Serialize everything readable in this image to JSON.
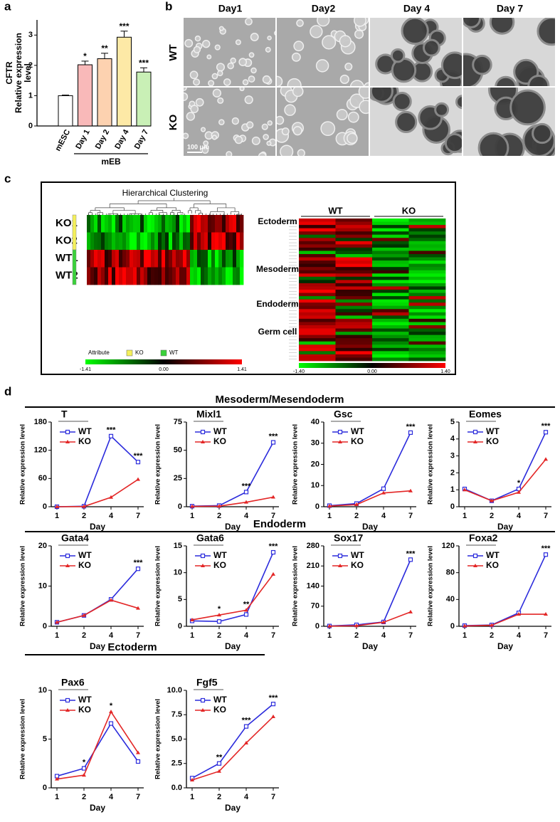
{
  "panel_labels": [
    "a",
    "b",
    "c",
    "d"
  ],
  "micrographs": {
    "columns": [
      "Day1",
      "Day2",
      "Day 4",
      "Day 7"
    ],
    "rows": [
      "WT",
      "KO"
    ],
    "scale_bar": "100 μm"
  },
  "heatmap_clustering": {
    "title": "Hierarchical Clustering",
    "rows": [
      "KO1",
      "KO2",
      "WT1",
      "WT2"
    ],
    "attribute_label": "Attribute",
    "legend": [
      "KO",
      "WT"
    ],
    "scale_ticks": [
      -1.41,
      {
        "value": 0,
        "label": "0.00"
      },
      1.41
    ]
  },
  "heatmap_lineage": {
    "columns": [
      "WT",
      "KO"
    ],
    "groups": [
      "Ectoderm",
      "Mesoderm",
      "Endoderm",
      "Germ cell"
    ],
    "scale_ticks": [
      {
        "value": -1.4,
        "label": "-1.40"
      },
      {
        "value": 0,
        "label": "0.00"
      },
      {
        "value": 1.4,
        "label": "1.40"
      }
    ]
  },
  "section_titles": [
    "Mesoderm/Mesendoderm",
    "Endoderm",
    "Ectoderm"
  ],
  "chart_data": [
    {
      "type": "bar",
      "ylabel": [
        "CFTR",
        "Relative expression",
        "level"
      ],
      "categories": [
        "mESC",
        "Day 1",
        "Day 2",
        "Day 4",
        "Day 7"
      ],
      "group_label": "mEB",
      "values": [
        1,
        2.02,
        2.22,
        2.93,
        1.78
      ],
      "errors": [
        0.02,
        0.12,
        0.18,
        0.2,
        0.14
      ],
      "annotations": [
        null,
        "*",
        "**",
        "***",
        "***"
      ],
      "colors": [
        "#ffffff",
        "#f9b9b9",
        "#fdd2b0",
        "#fde9a6",
        "#c9f0b6"
      ],
      "ylim": [
        0,
        3.5
      ],
      "yticks": [
        0,
        1,
        2,
        3
      ]
    },
    {
      "type": "line",
      "title": "T",
      "xlabel": "Day",
      "ylabel": "Relative expression level",
      "categories": [
        "1",
        "2",
        "4",
        "7"
      ],
      "series": [
        {
          "name": "WT",
          "color": "#2b2bdc",
          "values": [
            0,
            1,
            150,
            95
          ]
        },
        {
          "name": "KO",
          "color": "#e32626",
          "values": [
            0,
            0.5,
            20,
            58
          ]
        }
      ],
      "annotations": [
        null,
        null,
        "***",
        "***"
      ],
      "ylim": [
        0,
        180
      ],
      "yticks": [
        0,
        60,
        120,
        180
      ]
    },
    {
      "type": "line",
      "title": "Mixl1",
      "xlabel": "Day",
      "ylabel": "Relative expression level",
      "categories": [
        "1",
        "2",
        "4",
        "7"
      ],
      "series": [
        {
          "name": "WT",
          "color": "#2b2bdc",
          "values": [
            0.5,
            1,
            13,
            57
          ]
        },
        {
          "name": "KO",
          "color": "#e32626",
          "values": [
            0.3,
            0.5,
            4,
            8.5
          ]
        }
      ],
      "annotations": [
        null,
        null,
        "***",
        "***"
      ],
      "ylim": [
        0,
        75
      ],
      "yticks": [
        0,
        25,
        50,
        75
      ]
    },
    {
      "type": "line",
      "title": "Gsc",
      "xlabel": "Day",
      "ylabel": "Relative expression level",
      "categories": [
        "1",
        "2",
        "4",
        "7"
      ],
      "series": [
        {
          "name": "WT",
          "color": "#2b2bdc",
          "values": [
            0.5,
            1.5,
            8.5,
            35
          ]
        },
        {
          "name": "KO",
          "color": "#e32626",
          "values": [
            0.3,
            1,
            6.5,
            7.5
          ]
        }
      ],
      "annotations": [
        null,
        null,
        null,
        "***"
      ],
      "ylim": [
        0,
        40
      ],
      "yticks": [
        0,
        10,
        20,
        30,
        40
      ]
    },
    {
      "type": "line",
      "title": "Eomes",
      "xlabel": "Day",
      "ylabel": "Relative expression level",
      "categories": [
        "1",
        "2",
        "4",
        "7"
      ],
      "series": [
        {
          "name": "WT",
          "color": "#2b2bdc",
          "values": [
            1.05,
            0.35,
            1.05,
            4.4
          ]
        },
        {
          "name": "KO",
          "color": "#e32626",
          "values": [
            1,
            0.35,
            0.85,
            2.8
          ]
        }
      ],
      "annotations": [
        null,
        null,
        "*",
        "***"
      ],
      "ylim": [
        0,
        5
      ],
      "yticks": [
        0,
        1,
        2,
        3,
        4,
        5
      ]
    },
    {
      "type": "line",
      "title": "Gata4",
      "xlabel": "Day",
      "ylabel": "Relative expression level",
      "categories": [
        "1",
        "2",
        "4",
        "7"
      ],
      "series": [
        {
          "name": "WT",
          "color": "#2b2bdc",
          "values": [
            1,
            2.7,
            6.7,
            14.3
          ]
        },
        {
          "name": "KO",
          "color": "#e32626",
          "values": [
            1,
            2.7,
            6.5,
            4.5
          ]
        }
      ],
      "annotations": [
        null,
        null,
        null,
        "***"
      ],
      "ylim": [
        0,
        20
      ],
      "yticks": [
        0,
        10,
        20
      ]
    },
    {
      "type": "line",
      "title": "Gata6",
      "xlabel": "Day",
      "ylabel": "Relative expression level",
      "categories": [
        "1",
        "2",
        "4",
        "7"
      ],
      "series": [
        {
          "name": "WT",
          "color": "#2b2bdc",
          "values": [
            1,
            0.9,
            2.2,
            13.8
          ]
        },
        {
          "name": "KO",
          "color": "#e32626",
          "values": [
            1.2,
            2.1,
            3,
            9.7
          ]
        }
      ],
      "annotations": [
        null,
        "*",
        "**",
        "***"
      ],
      "ylim": [
        0,
        15
      ],
      "yticks": [
        0,
        5,
        10,
        15
      ]
    },
    {
      "type": "line",
      "title": "Sox17",
      "xlabel": "Day",
      "ylabel": "Relative expression level",
      "categories": [
        "1",
        "2",
        "4",
        "7"
      ],
      "series": [
        {
          "name": "WT",
          "color": "#2b2bdc",
          "values": [
            1,
            5,
            15,
            232
          ]
        },
        {
          "name": "KO",
          "color": "#e32626",
          "values": [
            0.5,
            2,
            14,
            50
          ]
        }
      ],
      "annotations": [
        null,
        null,
        null,
        "***"
      ],
      "ylim": [
        0,
        280
      ],
      "yticks": [
        0,
        70,
        140,
        210,
        280
      ]
    },
    {
      "type": "line",
      "title": "Foxa2",
      "xlabel": "Day",
      "ylabel": "Relative expression level",
      "categories": [
        "1",
        "2",
        "4",
        "7"
      ],
      "series": [
        {
          "name": "WT",
          "color": "#2b2bdc",
          "values": [
            1,
            2,
            20,
            107
          ]
        },
        {
          "name": "KO",
          "color": "#e32626",
          "values": [
            0.5,
            1.5,
            18,
            18
          ]
        }
      ],
      "annotations": [
        null,
        null,
        null,
        "***"
      ],
      "ylim": [
        0,
        120
      ],
      "yticks": [
        0,
        40,
        80,
        120
      ]
    },
    {
      "type": "line",
      "title": "Pax6",
      "xlabel": "Day",
      "ylabel": "Relative expression level",
      "categories": [
        "1",
        "2",
        "4",
        "7"
      ],
      "series": [
        {
          "name": "WT",
          "color": "#2b2bdc",
          "values": [
            1.2,
            2,
            6.6,
            2.7
          ]
        },
        {
          "name": "KO",
          "color": "#e32626",
          "values": [
            0.9,
            1.3,
            7.8,
            3.6
          ]
        }
      ],
      "annotations": [
        null,
        "*",
        "*",
        null
      ],
      "ylim": [
        0,
        10
      ],
      "yticks": [
        0,
        5,
        10
      ]
    },
    {
      "type": "line",
      "title": "Fgf5",
      "xlabel": "Day",
      "ylabel": "Relative expression level",
      "categories": [
        "1",
        "2",
        "4",
        "7"
      ],
      "series": [
        {
          "name": "WT",
          "color": "#2b2bdc",
          "values": [
            1,
            2.5,
            6.3,
            8.6
          ]
        },
        {
          "name": "KO",
          "color": "#e32626",
          "values": [
            0.8,
            1.7,
            4.6,
            7.3
          ]
        }
      ],
      "annotations": [
        null,
        "**",
        "***",
        "***"
      ],
      "ylim": [
        0,
        10
      ],
      "yticks": [
        {
          "value": 0,
          "label": "0.0"
        },
        {
          "value": 2.5,
          "label": "2.5"
        },
        {
          "value": 5,
          "label": "5.0"
        },
        {
          "value": 7.5,
          "label": "7.5"
        },
        {
          "value": 10,
          "label": "10.0"
        }
      ]
    }
  ]
}
